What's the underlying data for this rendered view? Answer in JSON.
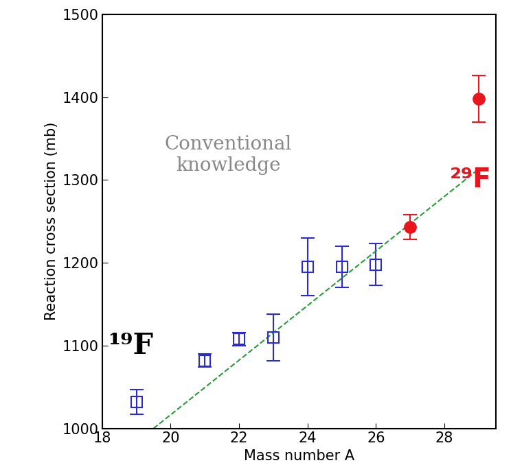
{
  "chart_data": {
    "type": "scatter",
    "x_label": "Mass number A",
    "y_label": "Reaction cross section (mb)",
    "xlim": [
      18,
      29.5
    ],
    "xticks": [
      18,
      20,
      22,
      24,
      26,
      28
    ],
    "ylim": [
      1000,
      1500
    ],
    "yticks": [
      1000,
      1100,
      1200,
      1300,
      1400,
      1500
    ],
    "grid": false,
    "series": [
      {
        "type": "scatter",
        "marker": "square_open",
        "color": "#2b2bd0",
        "x": [
          19,
          21,
          22,
          23,
          24,
          25,
          26
        ],
        "values": [
          1032,
          1082,
          1108,
          1110,
          1195,
          1195,
          1198
        ],
        "errors": [
          15,
          8,
          8,
          28,
          35,
          25,
          25
        ]
      },
      {
        "type": "scatter",
        "marker": "circle",
        "color": "#e8141e",
        "x": [
          27,
          29
        ],
        "values": [
          1243,
          1398
        ],
        "errors": [
          15,
          28
        ]
      },
      {
        "type": "line",
        "line_style": "dashed",
        "color": "#2a9a3a",
        "x": [
          19.5,
          29
        ],
        "values": [
          1000,
          1313
        ]
      }
    ],
    "annotations": [
      {
        "text": "Conventional\nknowledge",
        "color": "#888888"
      },
      {
        "text": "¹⁹F",
        "color": "#000000"
      },
      {
        "text": "²⁹F",
        "color": "#e8141e"
      }
    ]
  }
}
